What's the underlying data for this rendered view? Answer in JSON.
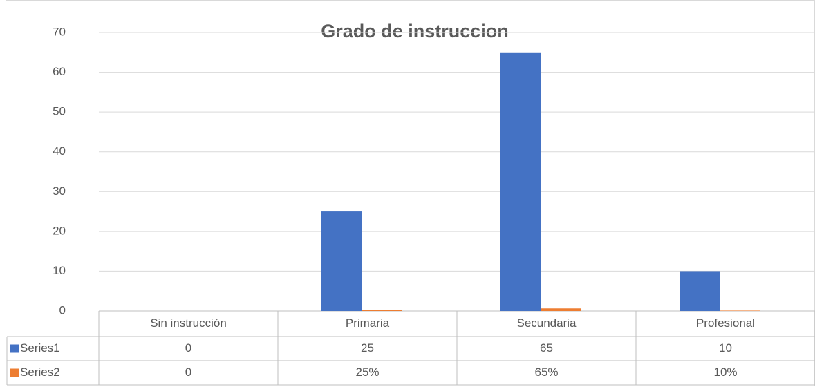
{
  "chart_data": {
    "type": "bar",
    "title": "Grado de instruccion",
    "categories": [
      "Sin instrucción",
      "Primaria",
      "Secundaria",
      "Profesional"
    ],
    "series": [
      {
        "name": "Series1",
        "color": "#4472c4",
        "values": [
          0,
          25,
          65,
          10
        ]
      },
      {
        "name": "Series2",
        "color": "#ed7d31",
        "values": [
          0,
          0.25,
          0.65,
          0.1
        ],
        "value_labels": [
          "0",
          "25%",
          "65%",
          "10%"
        ]
      }
    ],
    "ylim": [
      0,
      70
    ],
    "yticks": [
      0,
      10,
      20,
      30,
      40,
      50,
      60,
      70
    ],
    "grid": true
  }
}
